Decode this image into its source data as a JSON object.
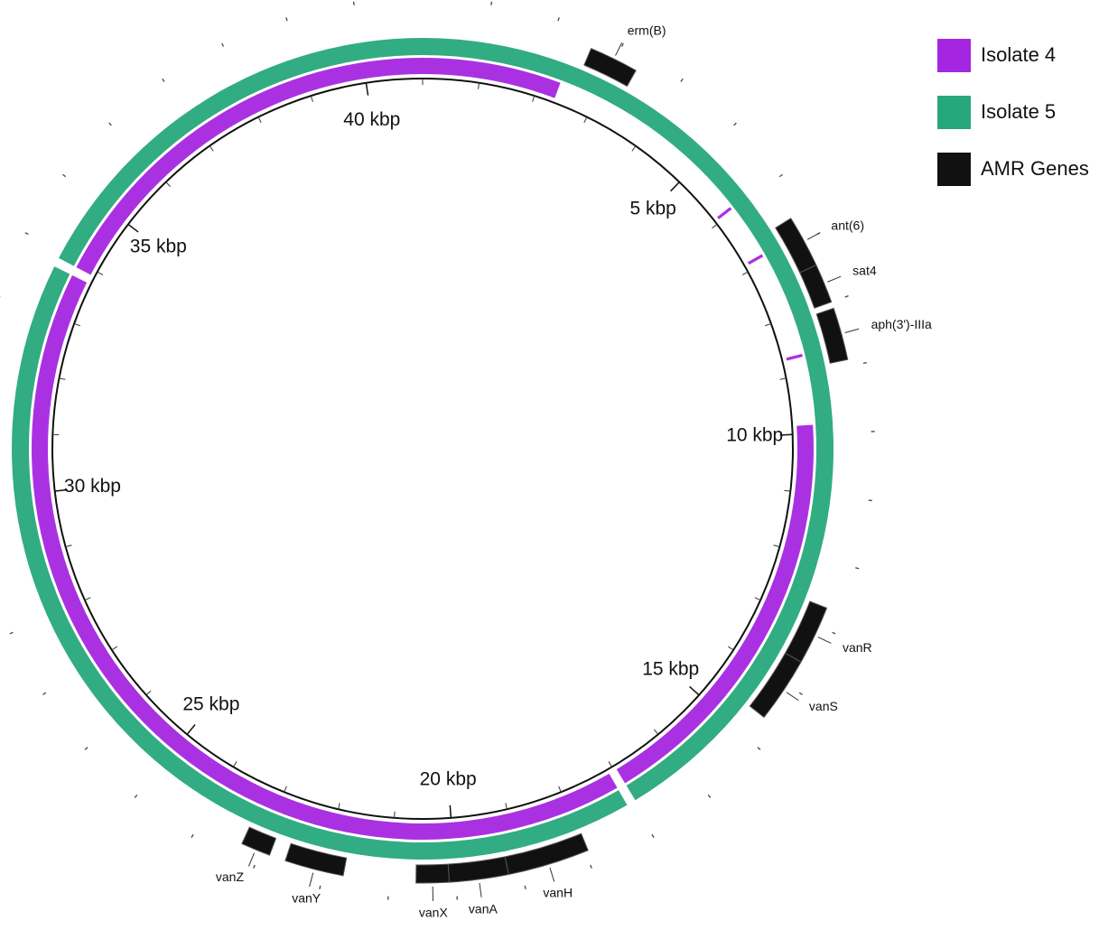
{
  "legend": [
    {
      "label": "Isolate 4",
      "color": "#a526e0"
    },
    {
      "label": "Isolate 5",
      "color": "#27a87c"
    },
    {
      "label": "AMR Genes",
      "color": "#111111"
    }
  ],
  "map": {
    "range": [
      0,
      41
    ],
    "minor_step": 1,
    "ticks": [
      {
        "value": 5,
        "label": "5 kbp"
      },
      {
        "value": 10,
        "label": "10 kbp"
      },
      {
        "value": 15,
        "label": "15 kbp"
      },
      {
        "value": 20,
        "label": "20 kbp"
      },
      {
        "value": 25,
        "label": "25 kbp"
      },
      {
        "value": 30,
        "label": "30 kbp"
      },
      {
        "value": 35,
        "label": "35 kbp"
      },
      {
        "value": 40,
        "label": "40 kbp"
      }
    ],
    "tracks": [
      {
        "name": "Isolate 4",
        "color": "#a526e0",
        "segments": [
          [
            9.85,
            16.95
          ],
          [
            17.1,
            33.75
          ],
          [
            33.9,
            41
          ],
          [
            0,
            2.35
          ],
          [
            5.9,
            5.95
          ],
          [
            6.85,
            6.9
          ],
          [
            8.65,
            8.7
          ]
        ]
      },
      {
        "name": "Isolate 5",
        "color": "#27a87c",
        "segments": [
          [
            0,
            16.95
          ],
          [
            17.1,
            33.75
          ],
          [
            33.9,
            41
          ]
        ]
      }
    ],
    "genes": [
      {
        "name": "erm(B)",
        "start": 2.6,
        "end": 3.35
      },
      {
        "name": "ant(6)",
        "start": 6.6,
        "end": 7.4
      },
      {
        "name": "sat4",
        "start": 7.4,
        "end": 8.0
      },
      {
        "name": "aph(3')-IIIa",
        "start": 8.1,
        "end": 8.9
      },
      {
        "name": "vanR",
        "start": 12.7,
        "end": 13.6
      },
      {
        "name": "vanS",
        "start": 13.6,
        "end": 14.6
      },
      {
        "name": "vanH",
        "start": 17.95,
        "end": 19.2
      },
      {
        "name": "vanA",
        "start": 19.2,
        "end": 20.1
      },
      {
        "name": "vanX",
        "start": 20.1,
        "end": 20.6
      },
      {
        "name": "vanY",
        "start": 21.7,
        "end": 22.6
      },
      {
        "name": "vanZ",
        "start": 22.85,
        "end": 23.3
      }
    ]
  }
}
